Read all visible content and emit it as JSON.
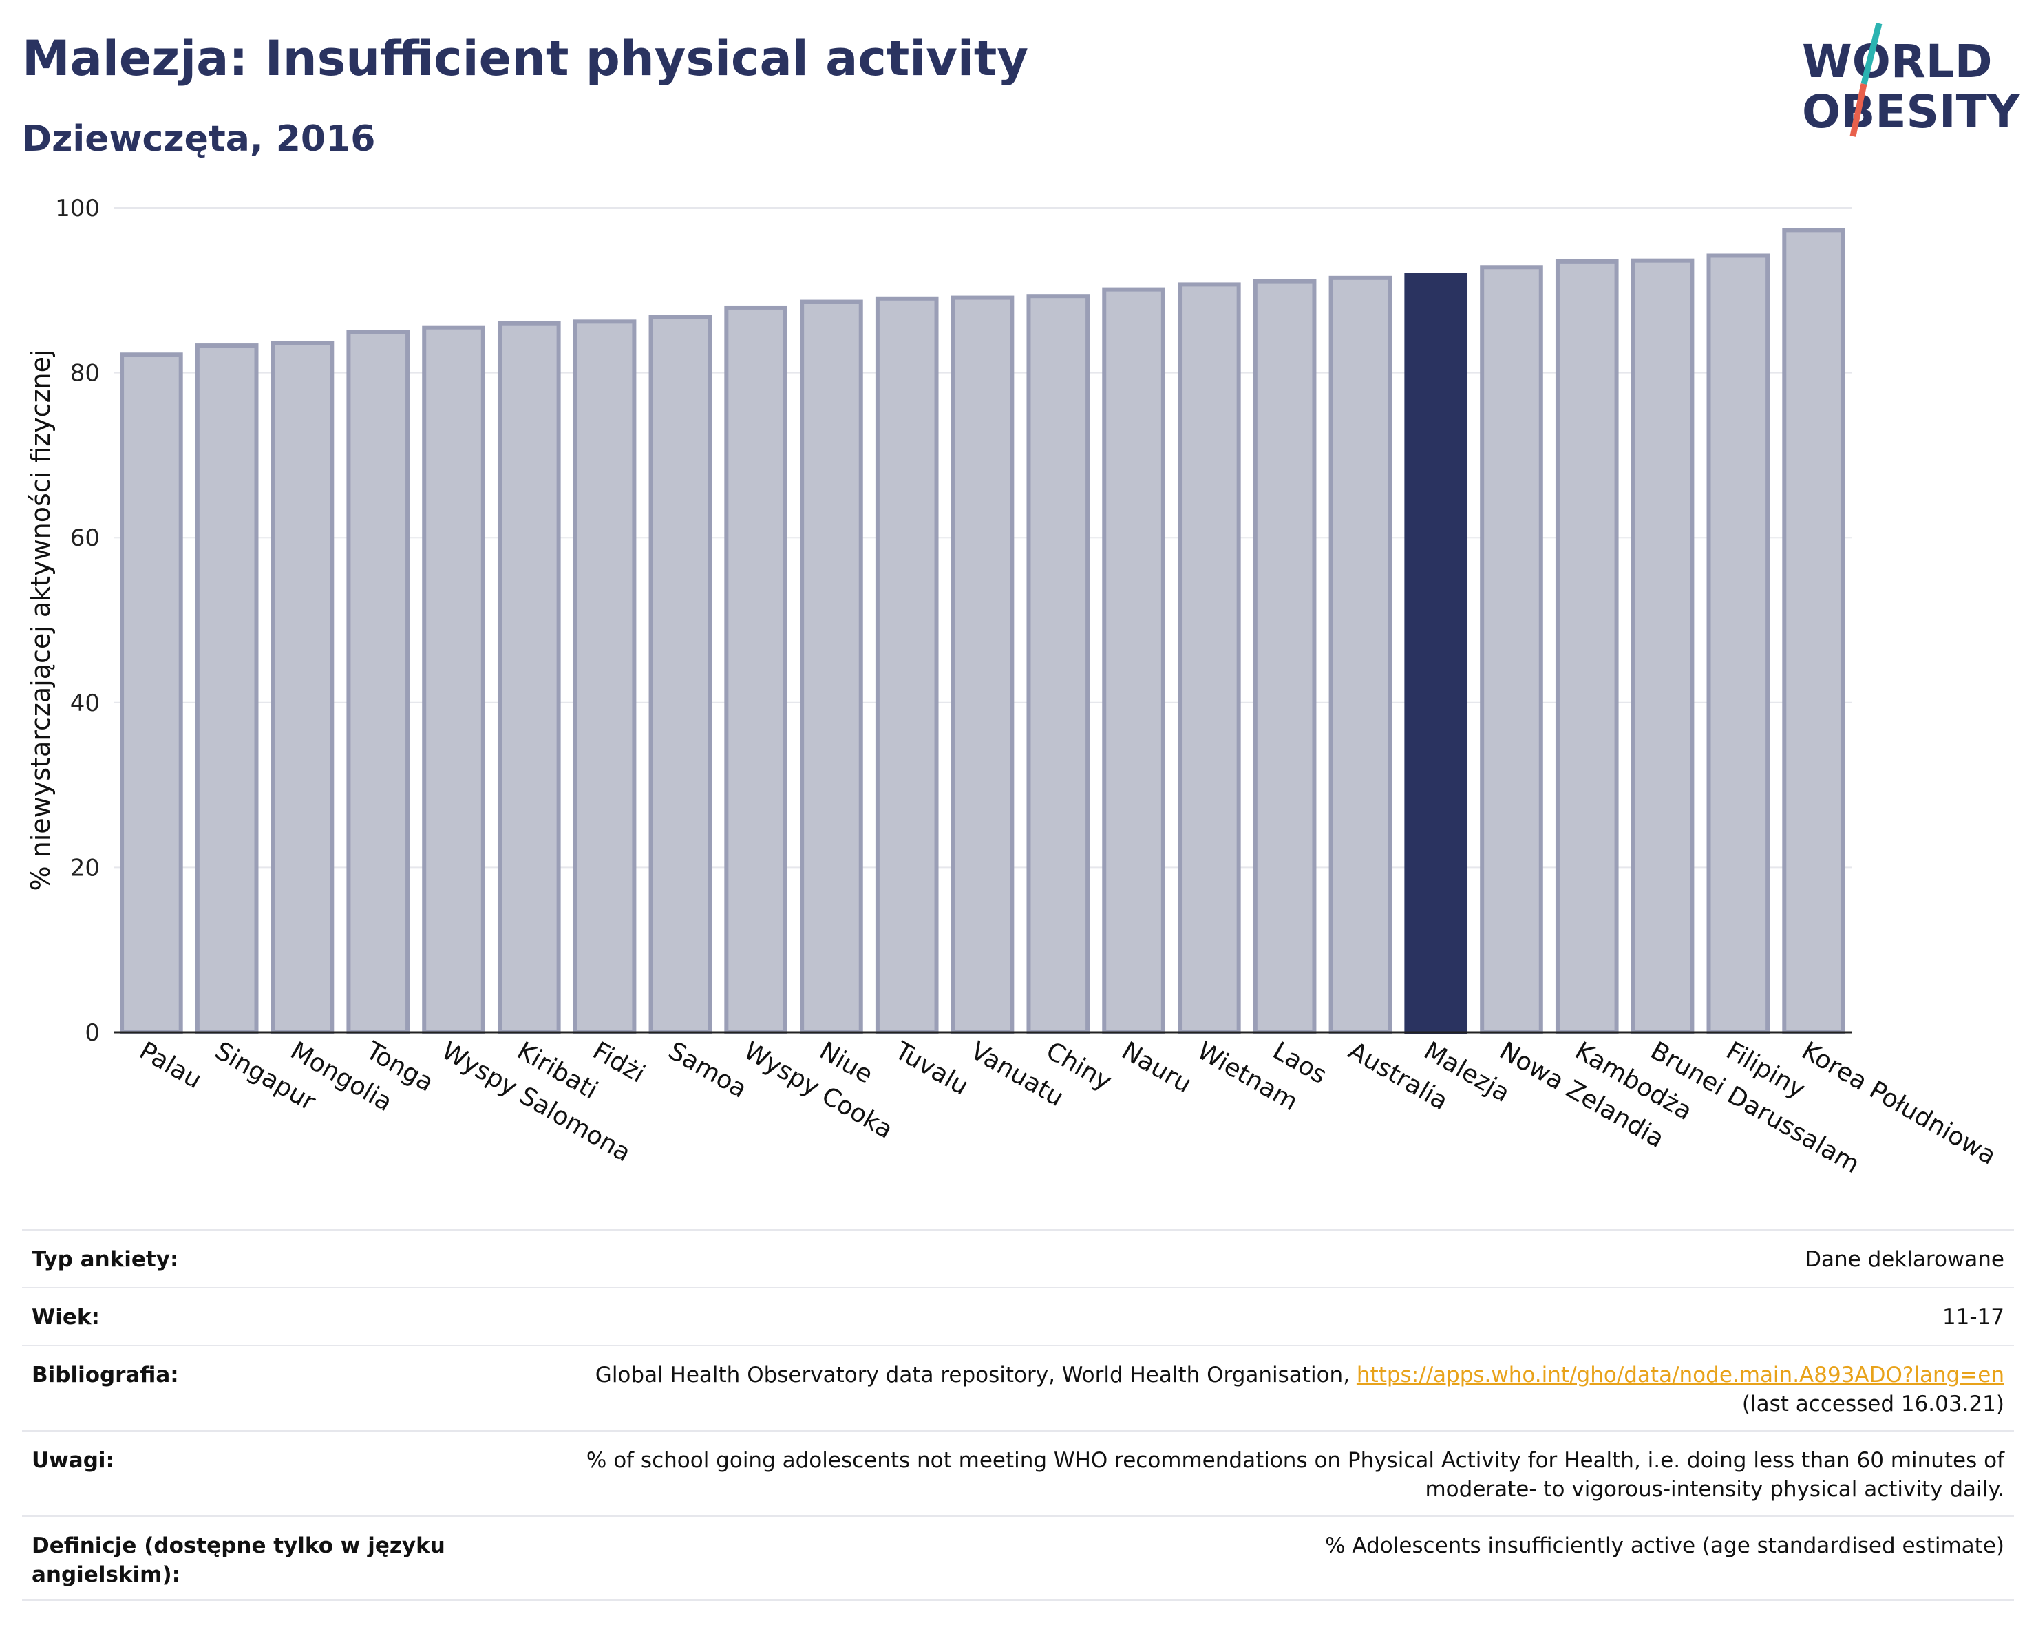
{
  "header": {
    "title": "Malezja: Insufficient physical activity",
    "subtitle": "Dziewczęta, 2016"
  },
  "logo": {
    "line1": "WORLD",
    "line2": "OBESITY",
    "colors": {
      "text": "#2a3360",
      "slash_top": "#2bb3b1",
      "slash_bottom": "#e8604c"
    }
  },
  "colors": {
    "bar": "#bfc2cf",
    "bar_edge": "#9a9eb6",
    "highlight": "#2a3360",
    "grid": "#e6e7ec",
    "axis": "#222222"
  },
  "chart_data": {
    "type": "bar",
    "title": "",
    "xlabel": "",
    "ylabel": "% niewystarczającej aktywności fizycznej",
    "ylim": [
      0,
      100
    ],
    "yticks": [
      0,
      20,
      40,
      60,
      80,
      100
    ],
    "grid": true,
    "categories": [
      "Palau",
      "Singapur",
      "Mongolia",
      "Tonga",
      "Wyspy Salomona",
      "Kiribati",
      "Fidżi",
      "Samoa",
      "Wyspy Cooka",
      "Niue",
      "Tuvalu",
      "Vanuatu",
      "Chiny",
      "Nauru",
      "Wietnam",
      "Laos",
      "Australia",
      "Malezja",
      "Nowa Zelandia",
      "Kambodża",
      "Brunei Darussalam",
      "Filipiny",
      "Korea Południowa"
    ],
    "values": [
      82.2,
      83.3,
      83.6,
      84.9,
      85.5,
      86.0,
      86.2,
      86.8,
      87.9,
      88.6,
      89.0,
      89.1,
      89.3,
      90.1,
      90.7,
      91.1,
      91.5,
      91.9,
      92.8,
      93.5,
      93.6,
      94.2,
      97.3
    ],
    "highlight": "Malezja"
  },
  "meta": {
    "rows": [
      {
        "key": "Typ ankiety:",
        "value": "Dane deklarowane"
      },
      {
        "key": "Wiek:",
        "value": "11-17"
      },
      {
        "key": "Bibliografia:",
        "value": "Global Health Observatory data repository, World Health Organisation, ",
        "link": "https://apps.who.int/gho/data/node.main.A893ADO?lang=en",
        "value2": "(last accessed 16.03.21)"
      },
      {
        "key": "Uwagi:",
        "value": "% of school going adolescents not meeting WHO recommendations on Physical Activity for Health, i.e. doing less than 60 minutes of",
        "value2": "moderate- to vigorous-intensity physical activity daily."
      },
      {
        "key": "Definicje (dostępne tylko w języku",
        "key2": "angielskim):",
        "value": "% Adolescents insufficiently active (age standardised estimate)"
      }
    ]
  }
}
